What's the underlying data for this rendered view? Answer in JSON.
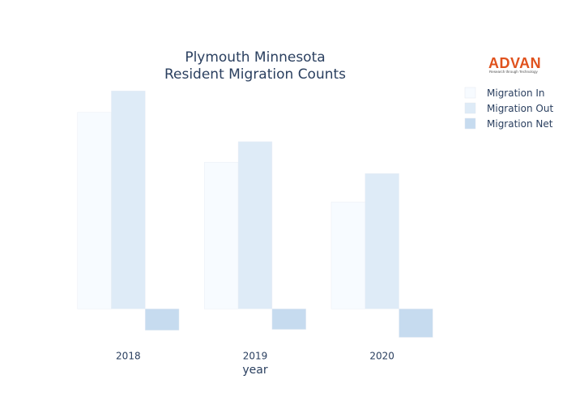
{
  "logo": {
    "name": "ADVAN",
    "tagline": "Research through Technology"
  },
  "chart_data": {
    "type": "bar",
    "title_lines": [
      "Plymouth Minnesota",
      "Resident Migration Counts"
    ],
    "xlabel": "year",
    "ylabel": "",
    "categories": [
      "2018",
      "2019",
      "2020"
    ],
    "series": [
      {
        "name": "Migration In",
        "values": [
          6900,
          5150,
          3750
        ],
        "color": "#f7fbff"
      },
      {
        "name": "Migration Out",
        "values": [
          7650,
          5870,
          4750
        ],
        "color": "#deebf7"
      },
      {
        "name": "Migration Net",
        "values": [
          -750,
          -720,
          -1000
        ],
        "color": "#c6dbef"
      }
    ],
    "ylim": [
      -1100,
      8000
    ],
    "grid": false,
    "legend_position": "top-right"
  }
}
